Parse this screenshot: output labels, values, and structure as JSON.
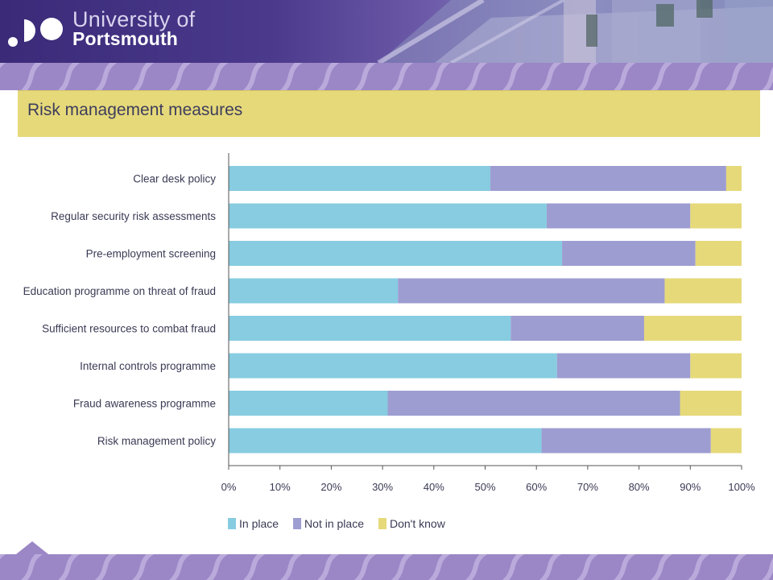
{
  "header": {
    "brand_line1": "University of",
    "brand_line2": "Portsmouth"
  },
  "colors": {
    "in_place": "#87cce0",
    "not_in_place": "#9d9dd2",
    "dont_know": "#e6d97a",
    "title_band": "#e6d97a",
    "header_purple": "#4b3a8c"
  },
  "chart_data": {
    "type": "bar",
    "orientation": "horizontal",
    "stacked": true,
    "title": "Risk management measures",
    "categories": [
      "Clear desk policy",
      "Regular security risk assessments",
      "Pre-employment screening",
      "Education programme on threat of fraud",
      "Sufficient resources to combat fraud",
      "Internal controls programme",
      "Fraud awareness programme",
      "Risk management policy"
    ],
    "series": [
      {
        "name": "In place",
        "values": [
          51,
          62,
          65,
          33,
          55,
          64,
          31,
          61
        ]
      },
      {
        "name": "Not in place",
        "values": [
          46,
          28,
          26,
          52,
          26,
          26,
          57,
          33
        ]
      },
      {
        "name": "Don't know",
        "values": [
          3,
          10,
          9,
          15,
          19,
          10,
          12,
          6
        ]
      }
    ],
    "xlim": [
      0,
      100
    ],
    "xticks": [
      "0%",
      "10%",
      "20%",
      "30%",
      "40%",
      "50%",
      "60%",
      "70%",
      "80%",
      "90%",
      "100%"
    ],
    "legend_placement": "bottom-left",
    "grid": false
  }
}
